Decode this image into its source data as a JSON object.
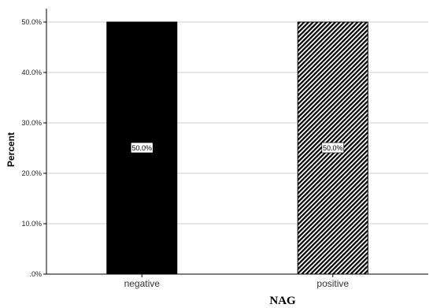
{
  "chart_data": {
    "type": "bar",
    "title": "",
    "xlabel": "NAG",
    "ylabel": "Percent",
    "categories": [
      "negative",
      "positive"
    ],
    "values": [
      50.0,
      50.0
    ],
    "data_labels": [
      "50.0%",
      "50.0%"
    ],
    "ylim": [
      0,
      50
    ],
    "yticks": [
      0,
      10,
      20,
      30,
      40,
      50
    ],
    "ytick_labels": [
      ".0%",
      "10.0%",
      "20.0%",
      "30.0%",
      "40.0%",
      "50.0%"
    ],
    "grid": true,
    "legend": "none",
    "bar_fills": [
      "solid",
      "diagonal-hatch"
    ],
    "colors": {
      "bar": "#000000",
      "grid": "#d0d0d0",
      "axis": "#000000",
      "hatch_background": "#ffffff"
    }
  }
}
